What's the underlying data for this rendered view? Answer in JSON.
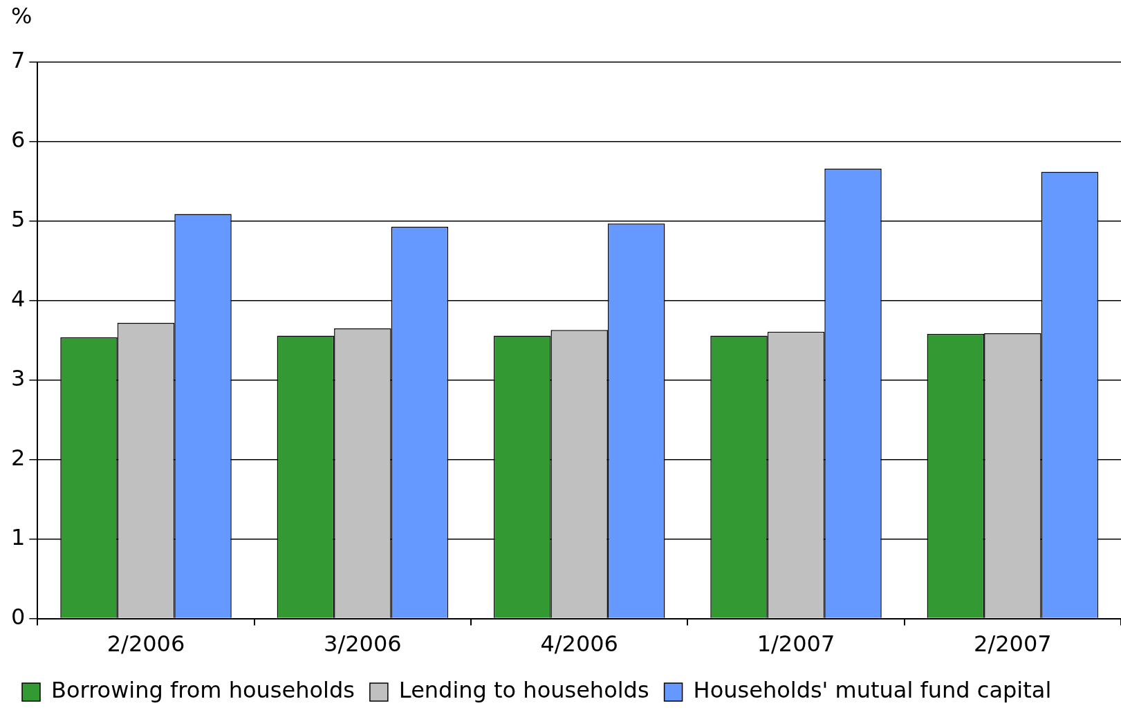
{
  "chart_data": {
    "type": "bar",
    "ylabel": "%",
    "categories": [
      "2/2006",
      "3/2006",
      "4/2006",
      "1/2007",
      "2/2007"
    ],
    "series": [
      {
        "name": "Borrowing from households",
        "color": "#339933",
        "values": [
          3.54,
          3.56,
          3.56,
          3.56,
          3.58
        ]
      },
      {
        "name": "Lending to households",
        "color": "#c0c0c0",
        "values": [
          3.72,
          3.65,
          3.63,
          3.61,
          3.59
        ]
      },
      {
        "name": "Households' mutual fund capital",
        "color": "#6699ff",
        "values": [
          5.09,
          4.93,
          4.97,
          5.66,
          5.62
        ]
      }
    ],
    "ylim": [
      0,
      7
    ],
    "yticks": [
      0,
      1,
      2,
      3,
      4,
      5,
      6,
      7
    ],
    "grid": "y",
    "legend": "bottom"
  }
}
